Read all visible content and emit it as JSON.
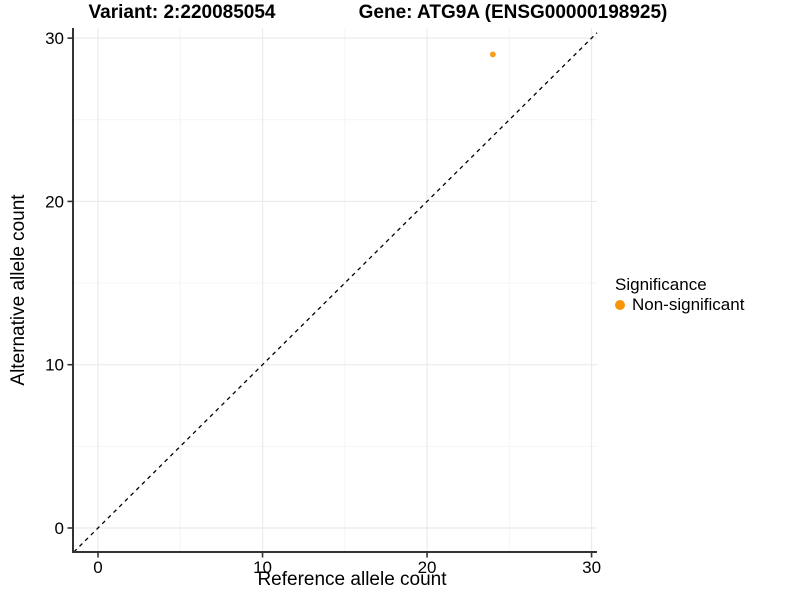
{
  "chart_data": {
    "type": "scatter",
    "title_left": "Variant: 2:220085054",
    "title_right": "Gene: ATG9A (ENSG00000198925)",
    "xlabel": "Reference allele count",
    "ylabel": "Alternative allele count",
    "x_ticks": [
      0,
      10,
      20,
      30
    ],
    "y_ticks": [
      0,
      10,
      20,
      30
    ],
    "x_minor_ticks": [
      5,
      15,
      25
    ],
    "y_minor_ticks": [
      5,
      15,
      25
    ],
    "xlim": [
      -1.52,
      30.33
    ],
    "ylim": [
      -1.47,
      30.62
    ],
    "grid": "major-and-minor",
    "legend_position": "right",
    "identity_line": {
      "slope": 1,
      "intercept": 0,
      "style": "dashed",
      "color": "#000000"
    },
    "series": [
      {
        "name": "Non-significant",
        "color": "#F99C1C",
        "points": [
          {
            "x": 24,
            "y": 29
          }
        ]
      }
    ],
    "legend": {
      "title": "Significance",
      "entries": [
        {
          "label": "Non-significant",
          "color": "#F99408"
        }
      ]
    }
  },
  "colors": {
    "background": "#FFFFFF",
    "axis_line": "#333333",
    "grid_major": "#EBEBEB",
    "grid_minor": "#F4F4F4",
    "text": "#000000"
  }
}
